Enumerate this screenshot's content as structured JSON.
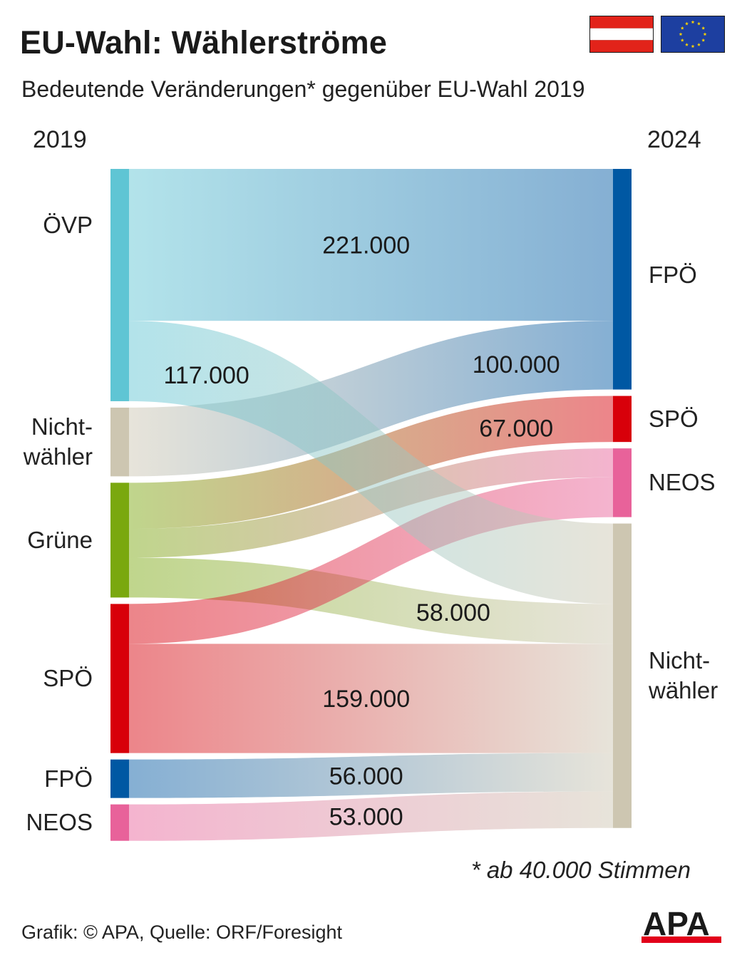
{
  "title": "EU-Wahl: Wählerströme",
  "subtitle": "Bedeutende Veränderungen* gegenüber EU-Wahl 2019",
  "footnote": "* ab 40.000 Stimmen",
  "source": "Grafik: © APA, Quelle: ORF/Foresight",
  "logo_text": "APA",
  "icons": {
    "flag_left": "austria-flag-icon",
    "flag_right": "eu-flag-icon"
  },
  "colors": {
    "oevp": "#5fc5d4",
    "nichtwaehler": "#cdc6b1",
    "gruene": "#7aa80f",
    "spoe": "#d8000a",
    "fpoe": "#0058a3",
    "neos": "#e8629a"
  },
  "chart_data": {
    "type": "sankey",
    "column_labels": [
      "2019",
      "2024"
    ],
    "sources": [
      {
        "id": "oevp_2019",
        "lines": [
          "ÖVP"
        ],
        "color": "#5fc5d4"
      },
      {
        "id": "nw_2019",
        "lines": [
          "Nicht-",
          "wähler"
        ],
        "color": "#cdc6b1"
      },
      {
        "id": "gruene_2019",
        "lines": [
          "Grüne"
        ],
        "color": "#7aa80f"
      },
      {
        "id": "spoe_2019",
        "lines": [
          "SPÖ"
        ],
        "color": "#d8000a"
      },
      {
        "id": "fpoe_2019",
        "lines": [
          "FPÖ"
        ],
        "color": "#0058a3"
      },
      {
        "id": "neos_2019",
        "lines": [
          "NEOS"
        ],
        "color": "#e8629a"
      }
    ],
    "targets": [
      {
        "id": "fpoe_2024",
        "lines": [
          "FPÖ"
        ],
        "color": "#0058a3"
      },
      {
        "id": "spoe_2024",
        "lines": [
          "SPÖ"
        ],
        "color": "#d8000a"
      },
      {
        "id": "neos_2024",
        "lines": [
          "NEOS"
        ],
        "color": "#e8629a"
      },
      {
        "id": "nw_2024",
        "lines": [
          "Nicht-",
          "wähler"
        ],
        "color": "#cdc6b1"
      }
    ],
    "flows": [
      {
        "source": "oevp_2019",
        "target": "fpoe_2024",
        "value": 221000,
        "label": "221.000"
      },
      {
        "source": "oevp_2019",
        "target": "nw_2024",
        "value": 117000,
        "label": "117.000"
      },
      {
        "source": "nw_2019",
        "target": "fpoe_2024",
        "value": 100000,
        "label": "100.000"
      },
      {
        "source": "gruene_2019",
        "target": "spoe_2024",
        "value": 67000,
        "label": "67.000"
      },
      {
        "source": "gruene_2019",
        "target": "neos_2024",
        "value": 42000,
        "label": ""
      },
      {
        "source": "gruene_2019",
        "target": "nw_2024",
        "value": 58000,
        "label": "58.000"
      },
      {
        "source": "spoe_2019",
        "target": "neos_2024",
        "value": 58000,
        "label": ""
      },
      {
        "source": "spoe_2019",
        "target": "nw_2024",
        "value": 159000,
        "label": "159.000"
      },
      {
        "source": "fpoe_2019",
        "target": "nw_2024",
        "value": 56000,
        "label": "56.000"
      },
      {
        "source": "neos_2019",
        "target": "nw_2024",
        "value": 53000,
        "label": "53.000"
      }
    ]
  }
}
